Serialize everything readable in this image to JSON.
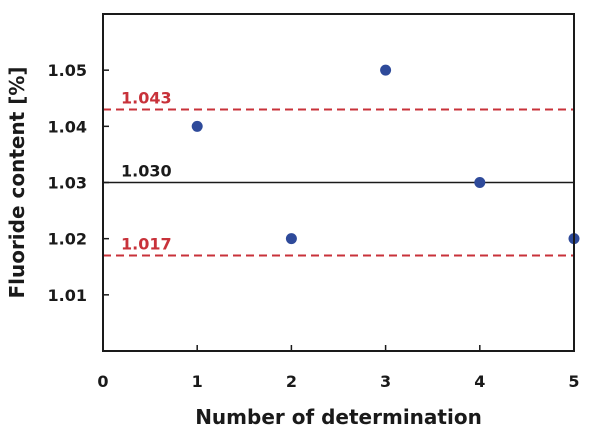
{
  "chart_data": {
    "type": "scatter",
    "title": "",
    "xlabel": "Number of determination",
    "ylabel": "Fluoride content [%]",
    "xlim": [
      0,
      5
    ],
    "ylim": [
      1.0,
      1.06
    ],
    "x_ticks": [
      0,
      1,
      2,
      3,
      4,
      5
    ],
    "x_tick_labels": [
      "0",
      "1",
      "2",
      "3",
      "4",
      "5"
    ],
    "y_ticks": [
      1.01,
      1.02,
      1.03,
      1.04,
      1.05
    ],
    "y_tick_labels": [
      "1.01",
      "1.02",
      "1.03",
      "1.04",
      "1.05"
    ],
    "grid": false,
    "legend": "none",
    "series": [
      {
        "color": "#2e4a9a",
        "points": [
          {
            "x": 1,
            "y": 1.04
          },
          {
            "x": 2,
            "y": 1.02
          },
          {
            "x": 3,
            "y": 1.05
          },
          {
            "x": 4,
            "y": 1.03
          },
          {
            "x": 5,
            "y": 1.02
          }
        ]
      }
    ],
    "reference_lines": [
      {
        "y": 1.043,
        "label": "1.043",
        "style": "dashed",
        "color": "#c8323a"
      },
      {
        "y": 1.03,
        "label": "1.030",
        "style": "solid",
        "color": "#1a1a1a"
      },
      {
        "y": 1.017,
        "label": "1.017",
        "style": "dashed",
        "color": "#c8323a"
      }
    ]
  }
}
